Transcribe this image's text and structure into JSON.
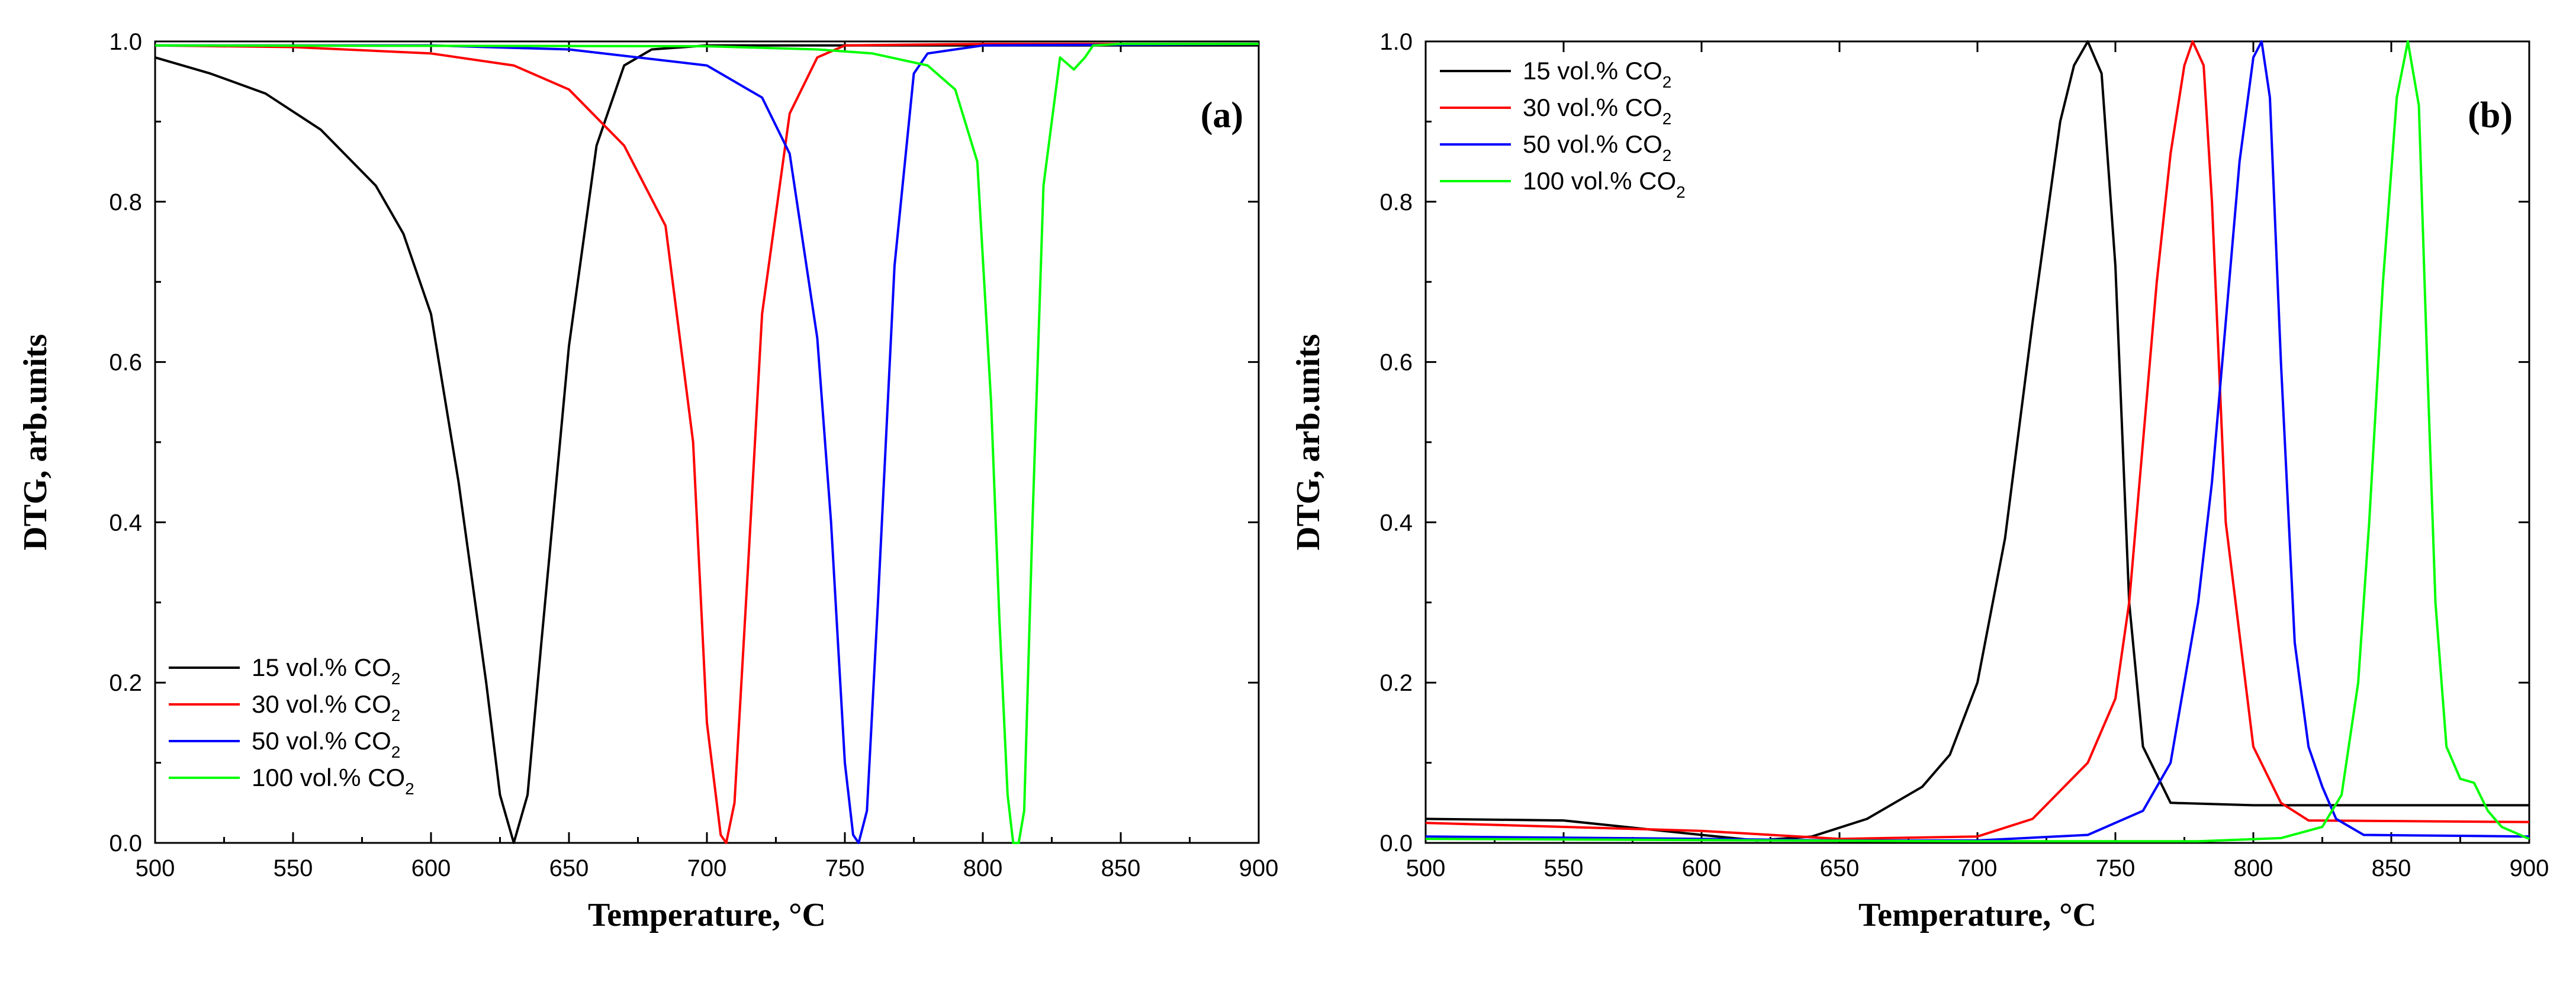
{
  "chart_data": [
    {
      "type": "line",
      "panel_label": "(a)",
      "xlabel": "Temperature, °C",
      "ylabel": "DTG, arb.units",
      "xlim": [
        500,
        900
      ],
      "ylim": [
        0,
        1
      ],
      "x_ticks": [
        "500",
        "550",
        "600",
        "650",
        "700",
        "750",
        "800",
        "850",
        "900"
      ],
      "y_ticks": [
        "0.0",
        "0.2",
        "0.4",
        "0.6",
        "0.8",
        "1.0"
      ],
      "legend_position": "bottom-left",
      "series": [
        {
          "name": "15 vol.% CO",
          "subscript": "2",
          "color": "#000000",
          "x": [
            500,
            520,
            540,
            560,
            580,
            590,
            600,
            610,
            620,
            625,
            630,
            635,
            640,
            650,
            660,
            670,
            680,
            700,
            750,
            800,
            850,
            900
          ],
          "y": [
            0.98,
            0.96,
            0.935,
            0.89,
            0.82,
            0.76,
            0.66,
            0.45,
            0.2,
            0.06,
            0.0,
            0.06,
            0.25,
            0.62,
            0.87,
            0.97,
            0.99,
            0.995,
            0.995,
            0.995,
            0.995,
            0.995
          ]
        },
        {
          "name": "30 vol.% CO",
          "subscript": "2",
          "color": "#ff0000",
          "x": [
            500,
            550,
            600,
            630,
            650,
            670,
            685,
            695,
            700,
            705,
            707,
            710,
            715,
            720,
            730,
            740,
            750,
            800,
            900
          ],
          "y": [
            0.995,
            0.993,
            0.985,
            0.97,
            0.94,
            0.87,
            0.77,
            0.5,
            0.15,
            0.01,
            0.0,
            0.05,
            0.35,
            0.66,
            0.91,
            0.98,
            0.995,
            0.997,
            0.997
          ]
        },
        {
          "name": "50 vol.% CO",
          "subscript": "2",
          "color": "#0000ff",
          "x": [
            500,
            600,
            650,
            700,
            720,
            730,
            740,
            745,
            750,
            753,
            755,
            758,
            762,
            768,
            775,
            780,
            790,
            800,
            900
          ],
          "y": [
            0.995,
            0.995,
            0.99,
            0.97,
            0.93,
            0.86,
            0.63,
            0.4,
            0.1,
            0.01,
            0.0,
            0.04,
            0.3,
            0.72,
            0.96,
            0.985,
            0.99,
            0.995,
            0.997
          ]
        },
        {
          "name": "100 vol.% CO",
          "subscript": "2",
          "color": "#00ff00",
          "x": [
            500,
            700,
            740,
            760,
            780,
            790,
            798,
            803,
            806,
            809,
            811,
            813,
            815,
            818,
            822,
            828,
            833,
            837,
            840,
            850,
            900
          ],
          "y": [
            0.995,
            0.994,
            0.99,
            0.985,
            0.97,
            0.94,
            0.85,
            0.55,
            0.28,
            0.06,
            0.0,
            0.0,
            0.04,
            0.4,
            0.82,
            0.98,
            0.965,
            0.98,
            0.995,
            0.997,
            0.997
          ]
        }
      ]
    },
    {
      "type": "line",
      "panel_label": "(b)",
      "xlabel": "Temperature, °C",
      "ylabel": "DTG, arb.units",
      "xlim": [
        500,
        900
      ],
      "ylim": [
        0,
        1
      ],
      "x_ticks": [
        "500",
        "550",
        "600",
        "650",
        "700",
        "750",
        "800",
        "850",
        "900"
      ],
      "y_ticks": [
        "0.0",
        "0.2",
        "0.4",
        "0.6",
        "0.8",
        "1.0"
      ],
      "legend_position": "top-left",
      "series": [
        {
          "name": "15 vol.% CO",
          "subscript": "2",
          "color": "#000000",
          "x": [
            500,
            550,
            600,
            620,
            640,
            660,
            680,
            690,
            700,
            710,
            720,
            730,
            735,
            740,
            745,
            750,
            755,
            760,
            770,
            800,
            900
          ],
          "y": [
            0.03,
            0.028,
            0.01,
            0.003,
            0.008,
            0.03,
            0.07,
            0.11,
            0.2,
            0.38,
            0.65,
            0.9,
            0.97,
            1.0,
            0.96,
            0.72,
            0.3,
            0.12,
            0.05,
            0.047,
            0.047
          ]
        },
        {
          "name": "30 vol.% CO",
          "subscript": "2",
          "color": "#ff0000",
          "x": [
            500,
            600,
            650,
            700,
            720,
            740,
            750,
            755,
            760,
            765,
            770,
            775,
            778,
            782,
            785,
            790,
            800,
            810,
            820,
            900
          ],
          "y": [
            0.025,
            0.015,
            0.005,
            0.008,
            0.03,
            0.1,
            0.18,
            0.3,
            0.5,
            0.7,
            0.86,
            0.97,
            1.0,
            0.97,
            0.8,
            0.4,
            0.12,
            0.05,
            0.028,
            0.026
          ]
        },
        {
          "name": "50 vol.% CO",
          "subscript": "2",
          "color": "#0000ff",
          "x": [
            500,
            600,
            650,
            700,
            740,
            760,
            770,
            780,
            785,
            790,
            795,
            800,
            803,
            806,
            810,
            815,
            820,
            825,
            830,
            840,
            900
          ],
          "y": [
            0.008,
            0.005,
            0.003,
            0.003,
            0.01,
            0.04,
            0.1,
            0.3,
            0.45,
            0.65,
            0.85,
            0.98,
            1.0,
            0.93,
            0.6,
            0.25,
            0.12,
            0.07,
            0.03,
            0.01,
            0.008
          ]
        },
        {
          "name": "100 vol.% CO",
          "subscript": "2",
          "color": "#00ff00",
          "x": [
            500,
            700,
            780,
            810,
            825,
            832,
            838,
            842,
            847,
            852,
            856,
            860,
            863,
            866,
            870,
            875,
            880,
            885,
            890,
            900
          ],
          "y": [
            0.005,
            0.002,
            0.002,
            0.006,
            0.02,
            0.06,
            0.2,
            0.4,
            0.7,
            0.93,
            1.0,
            0.92,
            0.6,
            0.3,
            0.12,
            0.08,
            0.075,
            0.04,
            0.02,
            0.005
          ]
        }
      ]
    }
  ]
}
